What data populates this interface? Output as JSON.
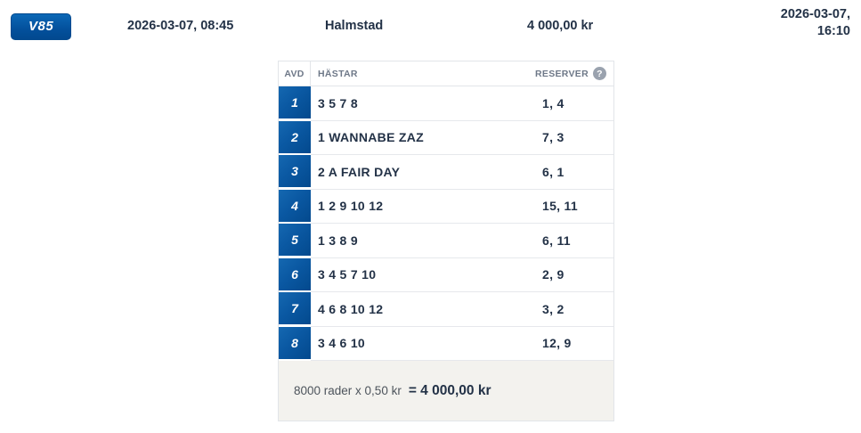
{
  "colors": {
    "brand_blue": "#0b5fae",
    "brand_blue_dark": "#03498d",
    "dark_text": "#233247",
    "muted_label": "#6e7888",
    "summary_background": "#f3f2ee",
    "border": "#e2e5e9"
  },
  "header": {
    "game_badge": "V85",
    "purchase_datetime": "2026-03-07, 08:45",
    "track": "Halmstad",
    "amount": "4 000,00 kr",
    "event_datetime": "2026-03-07,\n16:10"
  },
  "table": {
    "columns": {
      "avd": "AVD",
      "horses": "HÄSTAR",
      "reserves": "RESERVER"
    },
    "help_icon": "?",
    "rows": [
      {
        "avd": "1",
        "horses": "3 5 7 8",
        "reserves": "1, 4"
      },
      {
        "avd": "2",
        "horses": "1 WANNABE ZAZ",
        "reserves": "7, 3"
      },
      {
        "avd": "3",
        "horses": "2 A FAIR DAY",
        "reserves": "6, 1"
      },
      {
        "avd": "4",
        "horses": "1 2 9 10 12",
        "reserves": "15, 11"
      },
      {
        "avd": "5",
        "horses": "1 3 8 9",
        "reserves": "6, 11"
      },
      {
        "avd": "6",
        "horses": "3 4 5 7 10",
        "reserves": "2, 9"
      },
      {
        "avd": "7",
        "horses": "4 6 8 10 12",
        "reserves": "3, 2"
      },
      {
        "avd": "8",
        "horses": "3 4 6 10",
        "reserves": "12, 9"
      }
    ],
    "summary": {
      "calculation": "8000 rader x 0,50 kr",
      "total": "= 4 000,00 kr"
    }
  }
}
